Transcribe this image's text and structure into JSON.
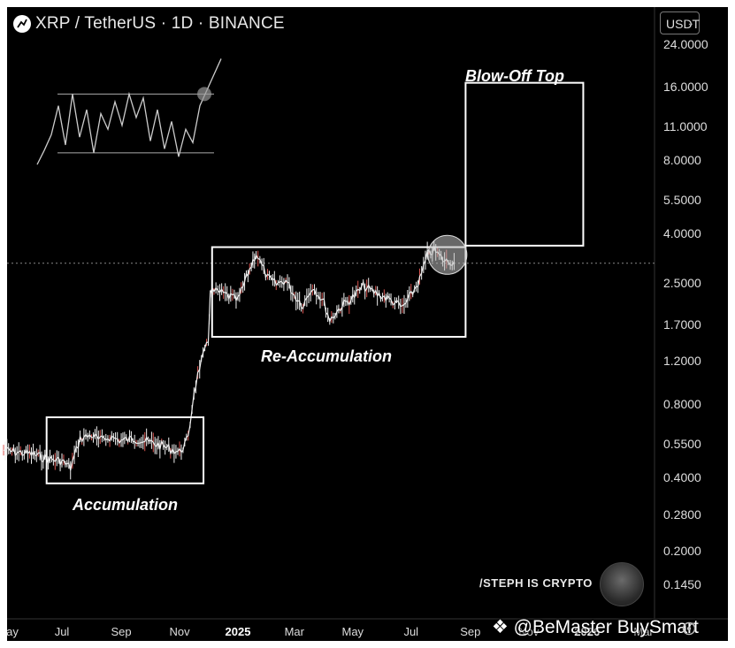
{
  "header": {
    "title": "XRP / TetherUS · 1D · BINANCE",
    "currency": "USDT"
  },
  "annotations": {
    "blow_off_top": "Blow-Off Top",
    "re_accumulation": "Re-Accumulation",
    "accumulation": "Accumulation"
  },
  "credit": "/STEPH IS CRYPTO",
  "watermark": "@BeMaster BuySmart",
  "colors": {
    "background": "#000000",
    "candles": "#f0f0f0",
    "down_candles": "#d9534f",
    "boxes": "#ffffff",
    "highlight": "#bdbdbd"
  },
  "icons": [
    "tradingview-logo-icon",
    "chevron-down-icon",
    "settings-icon",
    "binance-logo-icon"
  ],
  "chart_data": {
    "type": "line",
    "title": "XRP / TetherUS · 1D · BINANCE",
    "y_scale": "log",
    "ylim": [
      0.135,
      26
    ],
    "y_ticks": [
      "24.0000",
      "16.0000",
      "11.0000",
      "8.0000",
      "5.5000",
      "4.0000",
      "2.5000",
      "1.7000",
      "1.2000",
      "0.8000",
      "0.5500",
      "0.4000",
      "0.2800",
      "0.2000",
      "0.1450"
    ],
    "x_tick_labels": [
      "ay",
      "Jul",
      "Sep",
      "Nov",
      "2025",
      "Mar",
      "May",
      "Jul",
      "Sep",
      "Nov",
      "2026",
      "Mar"
    ],
    "x_range": [
      "2024-05-01",
      "2026-03-31"
    ],
    "crosshair_price": 3.05,
    "series": [
      {
        "values_x": [
          "2024-05-01",
          "2024-05-15",
          "2024-06-01",
          "2024-06-15",
          "2024-07-01",
          "2024-07-10",
          "2024-07-20",
          "2024-08-01",
          "2024-08-10",
          "2024-08-20",
          "2024-09-01",
          "2024-09-15",
          "2024-10-01",
          "2024-10-15",
          "2024-11-01",
          "2024-11-10",
          "2024-11-16",
          "2024-11-22",
          "2024-12-01",
          "2024-12-03",
          "2024-12-15",
          "2025-01-01",
          "2025-01-15",
          "2025-01-20",
          "2025-02-01",
          "2025-02-10",
          "2025-02-20",
          "2025-03-01",
          "2025-03-10",
          "2025-03-20",
          "2025-04-01",
          "2025-04-07",
          "2025-04-20",
          "2025-05-01",
          "2025-05-12",
          "2025-05-25",
          "2025-06-10",
          "2025-06-22",
          "2025-07-01",
          "2025-07-10",
          "2025-07-18",
          "2025-07-25",
          "2025-08-05",
          "2025-08-15"
        ],
        "values_y": [
          0.52,
          0.51,
          0.5,
          0.48,
          0.47,
          0.44,
          0.58,
          0.6,
          0.57,
          0.59,
          0.57,
          0.58,
          0.56,
          0.54,
          0.51,
          0.58,
          0.9,
          1.15,
          1.45,
          2.35,
          2.3,
          2.15,
          3.0,
          3.35,
          2.65,
          2.5,
          2.6,
          2.25,
          2.05,
          2.45,
          2.1,
          1.78,
          2.05,
          2.2,
          2.45,
          2.3,
          2.15,
          2.0,
          2.25,
          2.6,
          3.3,
          3.45,
          3.1,
          3.1
        ]
      }
    ],
    "boxes": [
      {
        "label": "Accumulation",
        "x_start": "2024-06-15",
        "x_end": "2024-11-26",
        "y_low": 0.38,
        "y_high": 0.71
      },
      {
        "label": "Re-Accumulation",
        "x_start": "2024-12-05",
        "x_end": "2025-08-27",
        "y_low": 1.52,
        "y_high": 3.55
      },
      {
        "label": "Blow-Off Top",
        "x_start": "2025-08-27",
        "x_end": "2025-12-28",
        "y_low": 3.6,
        "y_high": 16.8
      }
    ],
    "highlight_circle": {
      "x": "2025-08-08",
      "y": 3.3
    },
    "inset_chart": {
      "type": "line",
      "values": [
        0.1,
        0.28,
        0.48,
        0.85,
        0.35,
        1.0,
        0.45,
        0.8,
        0.25,
        0.75,
        0.55,
        0.9,
        0.6,
        1.0,
        0.7,
        0.95,
        0.4,
        0.8,
        0.3,
        0.65,
        0.2,
        0.55,
        0.38,
        0.85,
        1.05,
        1.25,
        1.45
      ],
      "range_low": 0.25,
      "range_high": 1.0
    }
  }
}
